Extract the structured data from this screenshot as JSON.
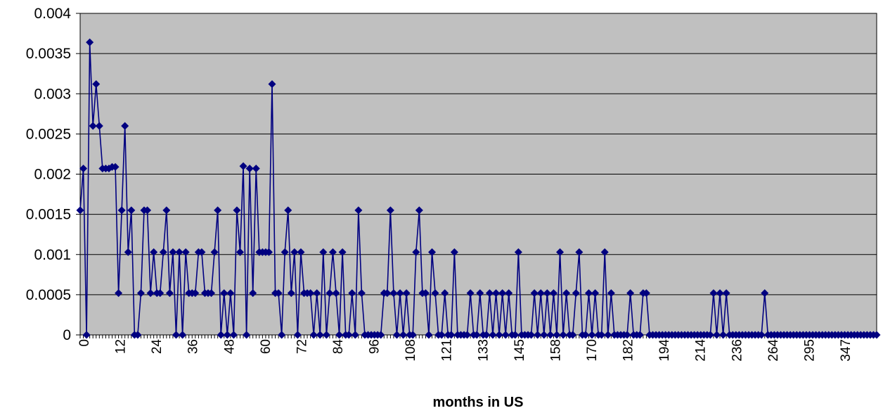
{
  "chart_data": {
    "type": "line",
    "title": "",
    "xlabel": "months in US",
    "ylabel": "",
    "ylim": [
      0,
      0.004
    ],
    "yticks": [
      "0",
      "0.0005",
      "0.001",
      "0.0015",
      "0.002",
      "0.0025",
      "0.003",
      "0.0035",
      "0.004"
    ],
    "xtick_labels": [
      "0",
      "12",
      "24",
      "36",
      "48",
      "60",
      "72",
      "84",
      "96",
      "108",
      "121",
      "133",
      "145",
      "158",
      "170",
      "182",
      "194",
      "214",
      "236",
      "264",
      "295",
      "347"
    ],
    "grid": "horizontal",
    "legend": "none",
    "colors": {
      "plot_background": "#c0c0c0",
      "series": "#000080"
    },
    "series": [
      {
        "values": [
          0.00155,
          0.00207,
          0,
          0.00364,
          0.0026,
          0.00312,
          0.0026,
          0.00207,
          0.00207,
          0.00207,
          0.00209,
          0.00209,
          0.00052,
          0.00155,
          0.0026,
          0.00103,
          0.00155,
          0,
          0,
          0.00052,
          0.00155,
          0.00155,
          0.00052,
          0.00103,
          0.00052,
          0.00052,
          0.00103,
          0.00155,
          0.00052,
          0.00103,
          0,
          0.00103,
          0,
          0.00103,
          0.00052,
          0.00052,
          0.00052,
          0.00103,
          0.00103,
          0.00052,
          0.00052,
          0.00052,
          0.00103,
          0.00155,
          0,
          0.00052,
          0,
          0.00052,
          0,
          0.00155,
          0.00103,
          0.0021,
          0,
          0.00207,
          0.00052,
          0.00207,
          0.00103,
          0.00103,
          0.00103,
          0.00103,
          0.00312,
          0.00052,
          0.00052,
          0,
          0.00103,
          0.00155,
          0.00052,
          0.00103,
          0,
          0.00103,
          0.00052,
          0.00052,
          0.00052,
          0,
          0.00052,
          0,
          0.00103,
          0,
          0.00052,
          0.00103,
          0.00052,
          0,
          0.00103,
          0,
          0,
          0.00052,
          0,
          0.00155,
          0.00052,
          0,
          0,
          0,
          0,
          0,
          0,
          0.00052,
          0.00052,
          0.00155,
          0.00052,
          0,
          0.00052,
          0,
          0.00052,
          0,
          0,
          0.00103,
          0.00155,
          0.00052,
          0.00052,
          0,
          0.00103,
          0.00052,
          0,
          0,
          0.00052,
          0,
          0,
          0.00103,
          0,
          0,
          0,
          0,
          0.00052,
          0,
          0,
          0.00052,
          0,
          0,
          0.00052,
          0,
          0.00052,
          0,
          0.00052,
          0,
          0.00052,
          0,
          0,
          0.00103,
          0,
          0,
          0,
          0,
          0.00052,
          0,
          0.00052,
          0,
          0.00052,
          0,
          0.00052,
          0,
          0.00103,
          0,
          0.00052,
          0,
          0,
          0.00052,
          0.00103,
          0,
          0,
          0.00052,
          0,
          0.00052,
          0,
          0,
          0.00103,
          0,
          0.00052,
          0,
          0,
          0,
          0,
          0,
          0.00052,
          0,
          0,
          0,
          0.00052,
          0.00052,
          0,
          0,
          0,
          0,
          0,
          0,
          0,
          0,
          0,
          0,
          0,
          0,
          0,
          0,
          0,
          0,
          0,
          0,
          0,
          0,
          0.00052,
          0,
          0.00052,
          0,
          0.00052,
          0,
          0,
          0,
          0,
          0,
          0,
          0,
          0,
          0,
          0,
          0,
          0.00052,
          0,
          0,
          0,
          0,
          0,
          0,
          0,
          0,
          0,
          0,
          0,
          0,
          0,
          0,
          0,
          0,
          0,
          0,
          0,
          0,
          0,
          0,
          0,
          0,
          0,
          0,
          0,
          0,
          0,
          0,
          0,
          0,
          0,
          0,
          0
        ]
      }
    ]
  }
}
